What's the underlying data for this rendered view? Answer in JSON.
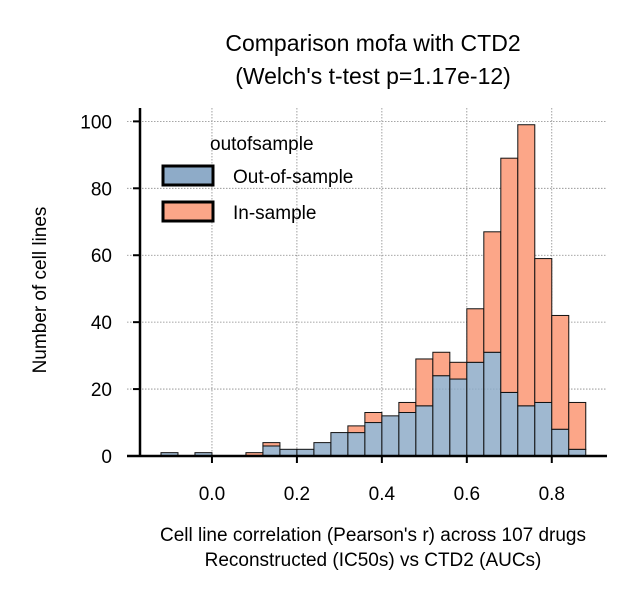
{
  "chart_data": {
    "type": "bar",
    "title": "Comparison mofa with CTD2",
    "subtitle": "(Welch's t-test p=1.17e-12)",
    "xlabel": "Cell line correlation (Pearson's r) across 107 drugs",
    "xlabel2": "Reconstructed (IC50s) vs CTD2 (AUCs)",
    "ylabel": "Number of cell lines",
    "xlim": [
      -0.2,
      0.93
    ],
    "ylim": [
      0,
      104
    ],
    "xticks": [
      0.0,
      0.2,
      0.4,
      0.6,
      0.8
    ],
    "xtick_labels": [
      "0.0",
      "0.2",
      "0.4",
      "0.6",
      "0.8"
    ],
    "yticks": [
      0,
      20,
      40,
      60,
      80,
      100
    ],
    "ytick_labels": [
      "0",
      "20",
      "40",
      "60",
      "80",
      "100"
    ],
    "grid": true,
    "legend_title": "outofsample",
    "legend_position": "top-left",
    "stacked": true,
    "bin_width": 0.04,
    "bin_left_edges": [
      -0.12,
      -0.08,
      -0.04,
      0.0,
      0.04,
      0.08,
      0.12,
      0.16,
      0.2,
      0.24,
      0.28,
      0.32,
      0.36,
      0.4,
      0.44,
      0.48,
      0.52,
      0.56,
      0.6,
      0.64,
      0.68,
      0.72,
      0.76,
      0.8,
      0.84
    ],
    "series": [
      {
        "name": "Out-of-sample",
        "color": "#8eabc8",
        "values": [
          1,
          0,
          1,
          0,
          0,
          0,
          3,
          2,
          2,
          4,
          7,
          7,
          10,
          12,
          13,
          15,
          24,
          23,
          28,
          31,
          19,
          15,
          16,
          8,
          2
        ]
      },
      {
        "name": "In-sample",
        "color": "#fca688",
        "values": [
          0,
          0,
          0,
          0,
          0,
          1,
          1,
          0,
          0,
          0,
          0,
          2,
          3,
          0,
          3,
          14,
          7,
          5,
          16,
          36,
          70,
          84,
          43,
          34,
          14
        ]
      }
    ]
  }
}
